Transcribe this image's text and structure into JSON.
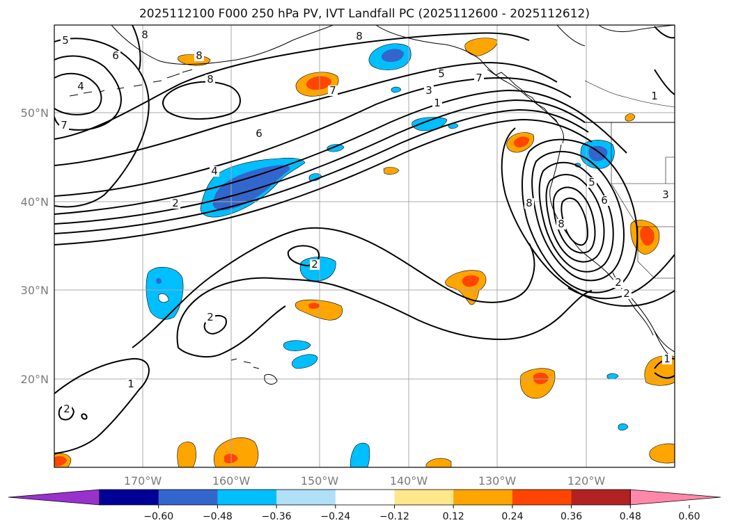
{
  "title": "2025112100 F000 250 hPa PV, IVT Landfall PC (2025112600 - 2025112612)",
  "lat_labels": [
    "50°N",
    "40°N",
    "30°N",
    "20°N"
  ],
  "lon_labels": [
    "170°W",
    "160°W",
    "150°W",
    "140°W",
    "130°W",
    "120°W"
  ],
  "colorbar": {
    "ticks": [
      "−0.60",
      "−0.48",
      "−0.36",
      "−0.24",
      "−0.12",
      "0.12",
      "0.24",
      "0.36",
      "0.48",
      "0.60"
    ],
    "colors": [
      "#9932CC",
      "#000099",
      "#3366CC",
      "#00BFFF",
      "#B0E0F8",
      "#FFFFFF",
      "#FFE88C",
      "#FFA500",
      "#FF4500",
      "#B22222",
      "#FF88AA"
    ]
  },
  "contour_labels": [
    "8",
    "8",
    "8",
    "8",
    "5",
    "6",
    "4",
    "7",
    "7",
    "6",
    "4",
    "2",
    "5",
    "3",
    "1",
    "8",
    "7",
    "5",
    "6",
    "3",
    "8",
    "2",
    "2",
    "1",
    "2",
    "1",
    "2",
    "2",
    "1"
  ],
  "shading_colors": {
    "pos_light": "#FFA500",
    "pos_strong": "#FF4500",
    "neg_light": "#00BFFF",
    "neg_strong": "#3366CC"
  }
}
